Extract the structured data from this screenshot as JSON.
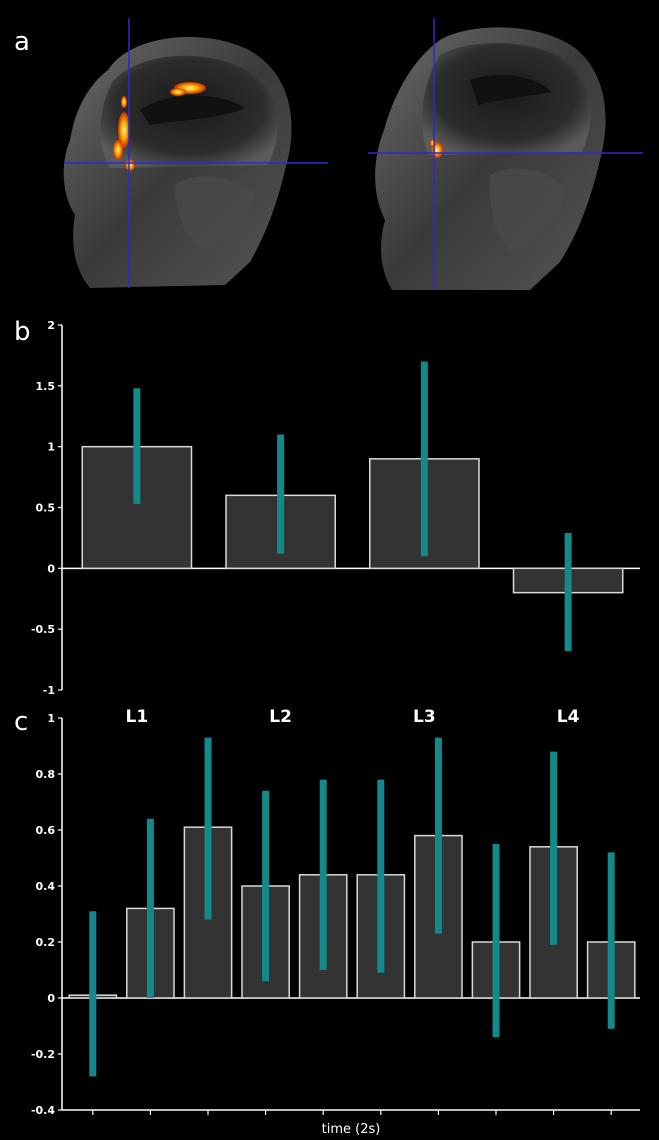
{
  "panels": {
    "a": {
      "letter": "a"
    },
    "b": {
      "letter": "b"
    },
    "c": {
      "letter": "c"
    }
  },
  "colors": {
    "background": "#000000",
    "bar_fill": "#333333",
    "bar_edge": "#d9d9d9",
    "error_bar": "#14898a",
    "activation": "#ffa500",
    "crosshair": "#2a2ad0"
  },
  "chart_data": [
    {
      "type": "bar",
      "panel": "b",
      "categories": [
        "L1",
        "L2",
        "L3",
        "L4"
      ],
      "values": [
        1.0,
        0.6,
        0.9,
        -0.2
      ],
      "error_low": [
        0.53,
        0.12,
        0.1,
        -0.68
      ],
      "error_high": [
        1.48,
        1.1,
        1.7,
        0.29
      ],
      "yticks": [
        "2",
        "1.5",
        "1",
        "0.5",
        "0",
        "-0.5",
        "-1"
      ],
      "ylim": [
        -1,
        2
      ],
      "xlabel": "",
      "ylabel": "",
      "grid": false
    },
    {
      "type": "bar",
      "panel": "c",
      "categories": [
        "",
        "",
        "",
        "",
        "",
        "",
        "",
        "",
        "",
        ""
      ],
      "values": [
        0.01,
        0.32,
        0.61,
        0.4,
        0.44,
        0.44,
        0.58,
        0.2,
        0.54,
        0.2
      ],
      "error_low": [
        -0.28,
        0.0,
        0.28,
        0.06,
        0.1,
        0.09,
        0.23,
        -0.14,
        0.19,
        -0.11
      ],
      "error_high": [
        0.31,
        0.64,
        0.93,
        0.74,
        0.78,
        0.78,
        0.93,
        0.55,
        0.88,
        0.52
      ],
      "yticks": [
        "1",
        "0.8",
        "0.6",
        "0.4",
        "0.2",
        "0",
        "-0.2",
        "-0.4"
      ],
      "ylim": [
        -0.4,
        1
      ],
      "xlabel": "time (2s)",
      "ylabel": "",
      "grid": false
    }
  ]
}
